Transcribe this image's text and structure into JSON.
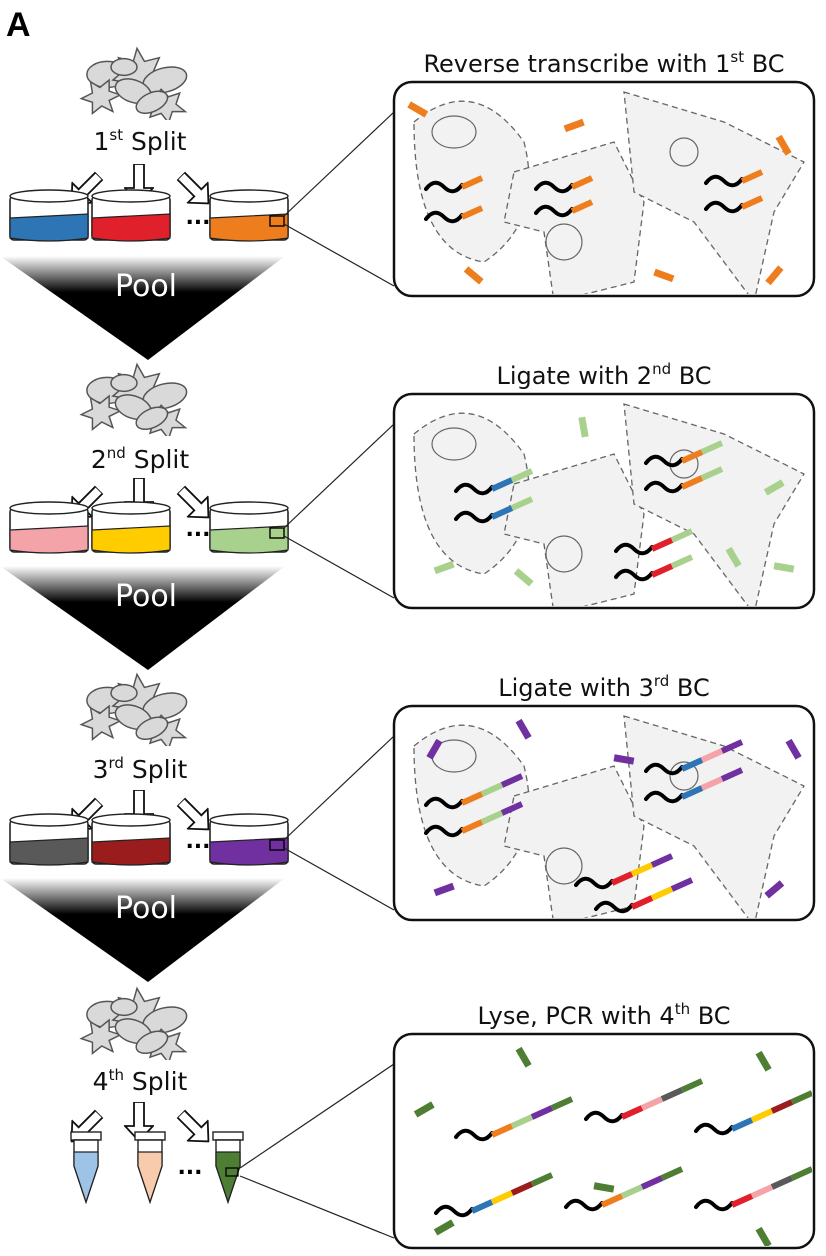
{
  "panel_label": "A",
  "colors": {
    "blue": "#2e75b6",
    "red": "#e0202a",
    "orange": "#ee7d1e",
    "pink": "#f4a3a8",
    "yellow": "#ffcc00",
    "light_green": "#a9d18e",
    "gray": "#595959",
    "dark_red": "#9b1c1c",
    "purple": "#7030a0",
    "light_blue": "#9dc3e6",
    "peach": "#f8cbad",
    "dark_green": "#4e7d34",
    "cell_fill": "#f2f2f2"
  },
  "pool_label": "Pool",
  "ellipsis": "...",
  "rounds": [
    {
      "split": {
        "num": "1",
        "sup": "st",
        "word": "Split"
      },
      "step": {
        "pre": "Reverse transcribe with 1",
        "sup": "st",
        "post": " BC"
      },
      "containers": [
        "blue",
        "red",
        "orange"
      ]
    },
    {
      "split": {
        "num": "2",
        "sup": "nd",
        "word": "Split"
      },
      "step": {
        "pre": "Ligate with 2",
        "sup": "nd",
        "post": " BC"
      },
      "containers": [
        "pink",
        "yellow",
        "light_green"
      ]
    },
    {
      "split": {
        "num": "3",
        "sup": "rd",
        "word": "Split"
      },
      "step": {
        "pre": "Ligate with 3",
        "sup": "rd",
        "post": " BC"
      },
      "containers": [
        "gray",
        "dark_red",
        "purple"
      ]
    },
    {
      "split": {
        "num": "4",
        "sup": "th",
        "word": "Split"
      },
      "step": {
        "pre": "Lyse, PCR with 4",
        "sup": "th",
        "post": " BC"
      },
      "containers": [
        "light_blue",
        "peach",
        "dark_green"
      ]
    }
  ]
}
